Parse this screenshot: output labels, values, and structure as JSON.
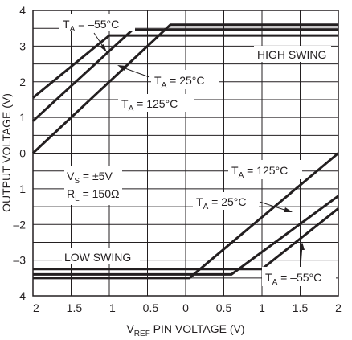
{
  "chart_data": {
    "type": "line",
    "xlabel": "V",
    "xlabel_sub": "REF",
    "xlabel_rest": " PIN VOLTAGE (V)",
    "ylabel": "OUTPUT VOLTAGE (V)",
    "xlim": [
      -2,
      2
    ],
    "ylim": [
      -4,
      4
    ],
    "x_ticks": [
      -2,
      -1.5,
      -1,
      -0.5,
      0,
      0.5,
      1,
      1.5,
      2
    ],
    "x_tick_labels": [
      "–2",
      "–1.5",
      "–1",
      "–0.5",
      "0",
      "0.5",
      "1",
      "1.5",
      "2"
    ],
    "y_ticks": [
      -4,
      -3,
      -2,
      -1,
      0,
      1,
      2,
      3,
      4
    ],
    "y_tick_labels": [
      "–4",
      "–3",
      "–2",
      "–1",
      "0",
      "1",
      "2",
      "3",
      "4"
    ],
    "grid": true,
    "line_color": "#231f20",
    "series": [
      {
        "name": "TA = –55°C high swing",
        "points": [
          [
            -2,
            1.55
          ],
          [
            -1,
            3.3
          ],
          [
            2,
            3.3
          ]
        ]
      },
      {
        "name": "TA = 25°C high swing",
        "points": [
          [
            -2,
            0.9
          ],
          [
            -0.7,
            3.45
          ],
          [
            2,
            3.45
          ]
        ]
      },
      {
        "name": "TA = 125°C high swing",
        "points": [
          [
            -2,
            0
          ],
          [
            -0.2,
            3.6
          ],
          [
            2,
            3.6
          ]
        ]
      },
      {
        "name": "TA = 125°C low swing",
        "points": [
          [
            -2,
            -3.5
          ],
          [
            0.05,
            -3.5
          ],
          [
            2,
            0
          ]
        ]
      },
      {
        "name": "TA = 25°C low swing",
        "points": [
          [
            -2,
            -3.4
          ],
          [
            0.6,
            -3.4
          ],
          [
            2,
            -1.2
          ]
        ]
      },
      {
        "name": "TA = –55°C low swing",
        "points": [
          [
            -2,
            -3.25
          ],
          [
            1,
            -3.25
          ],
          [
            2,
            -1.55
          ]
        ]
      }
    ],
    "annotations": {
      "high_55_main": "T",
      "high_55_sub": "A",
      "high_55_rest": " = –55°C",
      "high_25_main": "T",
      "high_25_sub": "A",
      "high_25_rest": " = 25°C",
      "high_125_main": "T",
      "high_125_sub": "A",
      "high_125_rest": " = 125°C",
      "high_swing": "HIGH SWING",
      "low_swing": "LOW SWING",
      "low_125_main": "T",
      "low_125_sub": "A",
      "low_125_rest": " = 125°C",
      "low_25_main": "T",
      "low_25_sub": "A",
      "low_25_rest": " = 25°C",
      "low_55_main": "T",
      "low_55_sub": "A",
      "low_55_rest": " = –55°C",
      "vs_main": "V",
      "vs_sub": "S",
      "vs_rest": " = ±5V",
      "rl_main": "R",
      "rl_sub": "L",
      "rl_rest": " = 150Ω"
    }
  }
}
